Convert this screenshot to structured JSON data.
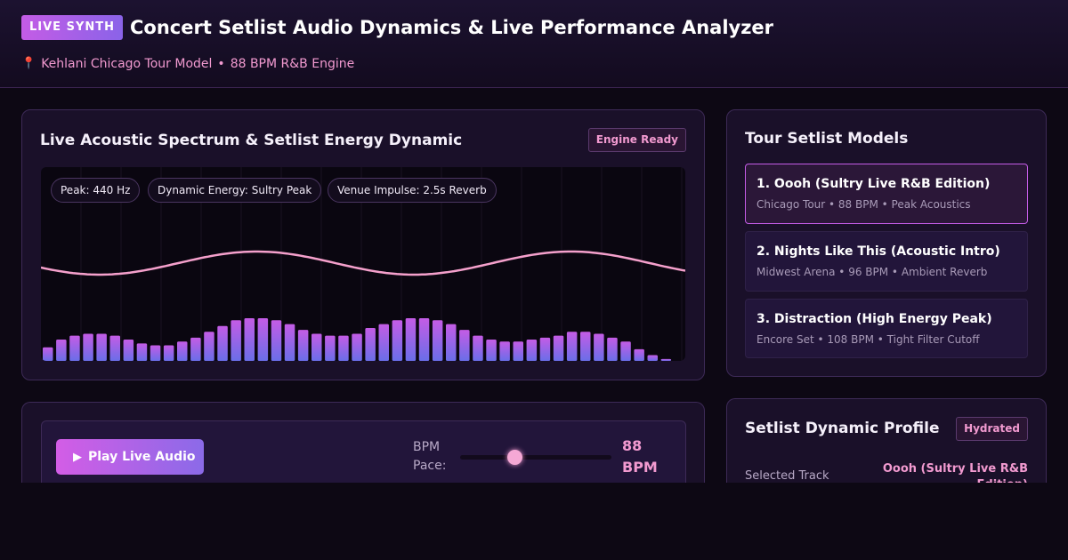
{
  "header": {
    "badge": "LIVE SYNTH",
    "title": "Concert Setlist Audio Dynamics & Live Performance Analyzer",
    "location": "Kehlani Chicago Tour Model",
    "engine": "88 BPM R&B Engine"
  },
  "spectrum": {
    "title": "Live Acoustic Spectrum & Setlist Energy Dynamic",
    "status": "Engine Ready",
    "chips": [
      "Peak: 440 Hz",
      "Dynamic Energy: Sultry Peak",
      "Venue Impulse: 2.5s Reverb"
    ],
    "bars": [
      0.07,
      0.11,
      0.13,
      0.14,
      0.14,
      0.13,
      0.11,
      0.09,
      0.08,
      0.08,
      0.1,
      0.12,
      0.15,
      0.18,
      0.21,
      0.22,
      0.22,
      0.21,
      0.19,
      0.16,
      0.14,
      0.13,
      0.13,
      0.14,
      0.17,
      0.19,
      0.21,
      0.22,
      0.22,
      0.21,
      0.19,
      0.16,
      0.13,
      0.11,
      0.1,
      0.1,
      0.11,
      0.12,
      0.13,
      0.15,
      0.15,
      0.14,
      0.12,
      0.1,
      0.06,
      0.03,
      0.01
    ],
    "colors": {
      "bar_top": "#c45ce6",
      "bar_bottom": "#6a6ee8",
      "wave": "#f5a0cc"
    }
  },
  "setlist": {
    "title": "Tour Setlist Models",
    "tracks": [
      {
        "name": "1. Oooh (Sultry Live R&B Edition)",
        "meta": "Chicago Tour • 88 BPM • Peak Acoustics",
        "selected": true
      },
      {
        "name": "2. Nights Like This (Acoustic Intro)",
        "meta": "Midwest Arena • 96 BPM • Ambient Reverb",
        "selected": false
      },
      {
        "name": "3. Distraction (High Energy Peak)",
        "meta": "Encore Set • 108 BPM • Tight Filter Cutoff",
        "selected": false
      }
    ]
  },
  "controls": {
    "play_label": "Play Live Audio",
    "bpm_label": "BPM Pace:",
    "bpm_value": "88 BPM",
    "bpm_fraction": 0.36
  },
  "profile": {
    "title": "Setlist Dynamic Profile",
    "status": "Hydrated",
    "selected_label": "Selected Track",
    "selected_value": "Oooh (Sultry Live R&B Edition)"
  }
}
